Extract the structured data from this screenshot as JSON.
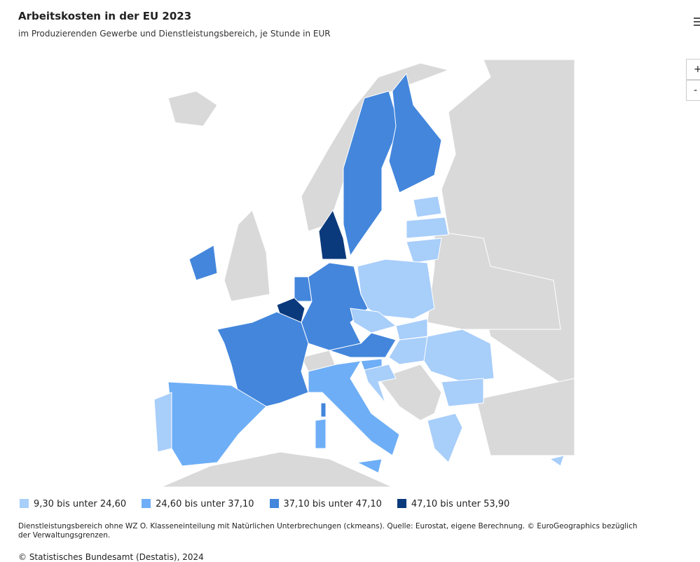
{
  "header": {
    "title": "Arbeitskosten in der EU 2023",
    "subtitle": "im Produzierenden Gewerbe und Dienstleistungsbereich, je Stunde in EUR"
  },
  "legend": {
    "classes": [
      {
        "label": "9,30 bis unter 24,60",
        "color": "#a8cefa"
      },
      {
        "label": "24,60 bis unter 37,10",
        "color": "#6eaef6"
      },
      {
        "label": "37,10 bis unter 47,10",
        "color": "#4386dc"
      },
      {
        "label": "47,10 bis unter 53,90",
        "color": "#0b3a7c"
      }
    ]
  },
  "footer": {
    "note": [
      "Dienstleistungsbereich ohne WZ O. Klasseneinteilung mit Natürlichen Unterbrechungen (ckmeans). Quelle: Eurostat, eigene Berechnung. © EuroGeographics bezüglich",
      "der Verwaltungsgrenzen."
    ],
    "credit": "© Statistisches Bundesamt (Destatis), 2024"
  },
  "controls": {
    "zoom_in": "+",
    "zoom_out": "-"
  }
}
